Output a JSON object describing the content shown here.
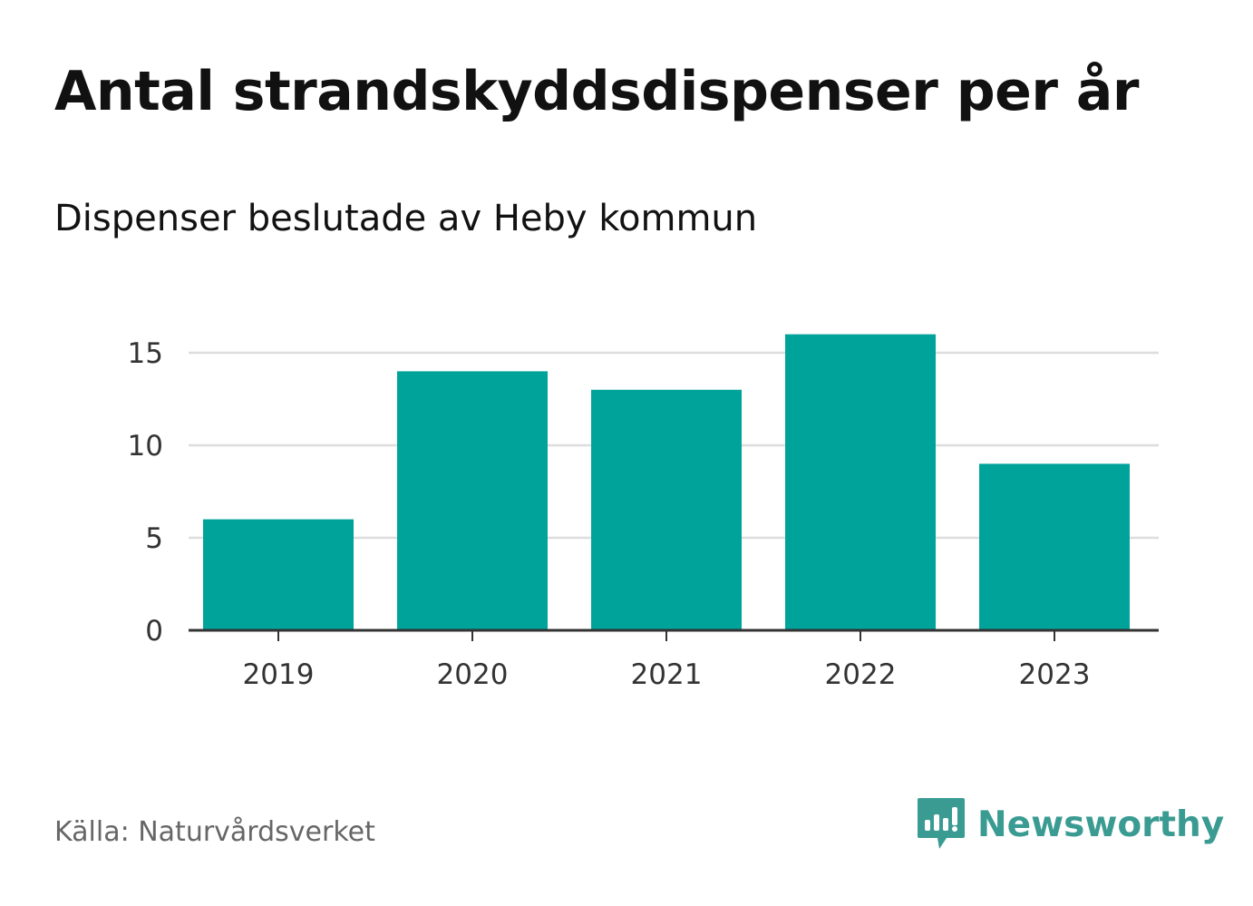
{
  "header": {
    "title": "Antal strandskyddsdispenser per år",
    "subtitle": "Dispenser beslutade av Heby kommun"
  },
  "footer": {
    "source": "Källa: Naturvårdsverket",
    "brand": "Newsworthy",
    "brand_icon": "newsworthy-logo-icon"
  },
  "colors": {
    "bar": "#00a39a",
    "grid": "#dddddd",
    "axis": "#333333",
    "brand": "#3a9b92"
  },
  "chart_data": {
    "type": "bar",
    "title": "Antal strandskyddsdispenser per år",
    "subtitle": "Dispenser beslutade av Heby kommun",
    "categories": [
      "2019",
      "2020",
      "2021",
      "2022",
      "2023"
    ],
    "values": [
      6,
      14,
      13,
      16,
      9
    ],
    "xlabel": "",
    "ylabel": "",
    "ylim": [
      0,
      17
    ],
    "yticks": [
      0,
      5,
      10,
      15
    ],
    "grid": true,
    "legend": "none"
  }
}
